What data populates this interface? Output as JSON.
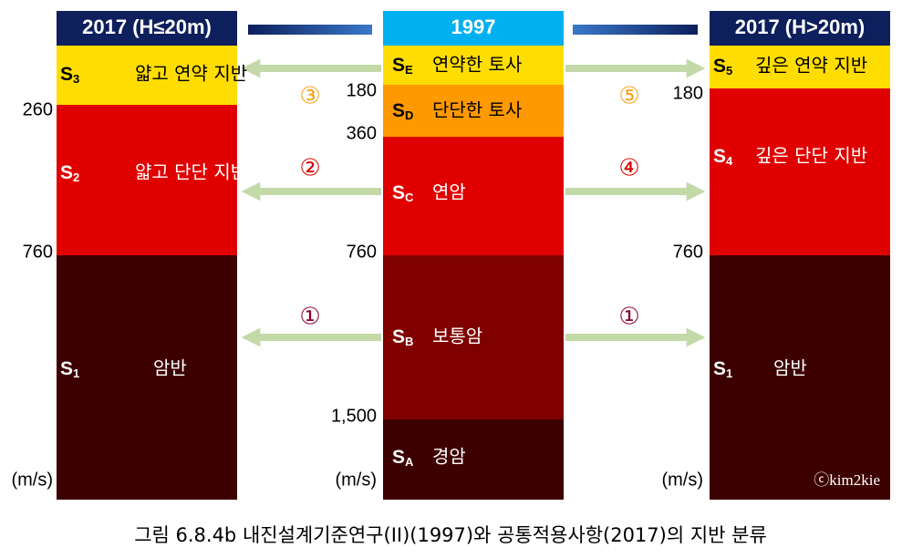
{
  "headers": {
    "left": "2017 (H≤20m)",
    "middle": "1997",
    "right": "2017 (H>20m)"
  },
  "left_layers": [
    {
      "symbol": "S",
      "sub": "3",
      "name": "얇고 연약 지반"
    },
    {
      "symbol": "S",
      "sub": "2",
      "name": "얇고 단단 지반"
    },
    {
      "symbol": "S",
      "sub": "1",
      "name": "암반"
    }
  ],
  "middle_layers": [
    {
      "symbol": "S",
      "sub": "E",
      "name": "연약한 토사"
    },
    {
      "symbol": "S",
      "sub": "D",
      "name": "단단한 토사"
    },
    {
      "symbol": "S",
      "sub": "C",
      "name": "연암"
    },
    {
      "symbol": "S",
      "sub": "B",
      "name": "보통암"
    },
    {
      "symbol": "S",
      "sub": "A",
      "name": "경암"
    }
  ],
  "right_layers": [
    {
      "symbol": "S",
      "sub": "5",
      "name": "깊은 연약 지반"
    },
    {
      "symbol": "S",
      "sub": "4",
      "name": "깊은 단단 지반"
    },
    {
      "symbol": "S",
      "sub": "1",
      "name": "암반"
    }
  ],
  "left_boundaries": [
    "260",
    "760"
  ],
  "middle_boundaries": [
    "180",
    "360",
    "760",
    "1,500"
  ],
  "right_boundaries": [
    "180",
    "760"
  ],
  "unit": "(m/s)",
  "arrow_labels": [
    "③",
    "⑤",
    "②",
    "④",
    "①",
    "①"
  ],
  "watermark": "ⓒkim2kie",
  "caption": "그림 6.8.4b 내진설계기준연구(II)(1997)와 공통적용사항(2017)의 지반 분류"
}
